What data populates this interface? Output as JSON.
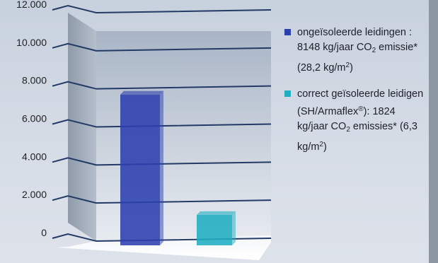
{
  "chart_data": {
    "type": "bar",
    "ylim": [
      0,
      12000
    ],
    "yticks": [
      "0",
      "2.000",
      "4.000",
      "6.000",
      "8.000",
      "10.000",
      "12.000"
    ],
    "series": [
      {
        "name": "ongeïsoleerde leidingen : 8148 kg/jaar CO2 emissie* (28,2 kg/m2)",
        "color": "#2c3fae",
        "values": [
          8148
        ]
      },
      {
        "name": "correct geïsoleerde leidigen (SH/Armaflex®): 1824 kg/jaar CO2 emissies* (6,3 kg/m2)",
        "color": "#1faec2",
        "values": [
          1824
        ]
      }
    ],
    "grid": true,
    "legend": "right"
  },
  "legend_text": {
    "item1_part1": "ongeïsoleerde leidingen : 8148 kg/jaar CO",
    "item1_sub": "2",
    "item1_part2": " emissie* (28,2 kg/m",
    "item1_sup": "2",
    "item1_part3": ")",
    "item2_part1": "correct geïsoleerde leidigen (SH/Armaflex",
    "item2_reg": "®",
    "item2_part2": "): 1824 kg/jaar CO",
    "item2_sub": "2",
    "item2_part3": " emissies* (6,3 kg/m",
    "item2_sup": "2",
    "item2_part4": ")"
  }
}
